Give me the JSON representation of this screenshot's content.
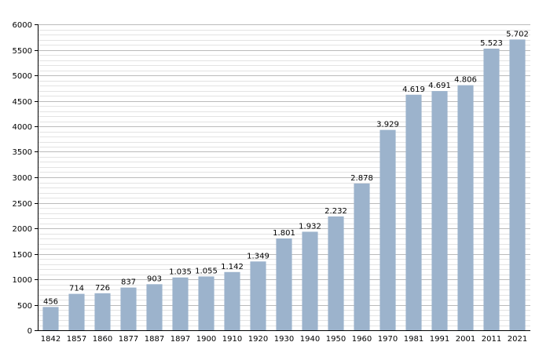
{
  "chart_data": {
    "type": "bar",
    "categories": [
      "1842",
      "1857",
      "1860",
      "1877",
      "1887",
      "1897",
      "1900",
      "1910",
      "1920",
      "1930",
      "1940",
      "1950",
      "1960",
      "1970",
      "1981",
      "1991",
      "2001",
      "2011",
      "2021"
    ],
    "values": [
      456,
      714,
      726,
      837,
      903,
      1035,
      1055,
      1142,
      1349,
      1801,
      1932,
      2232,
      2878,
      3929,
      4619,
      4691,
      4806,
      5523,
      5702
    ],
    "value_labels": [
      "456",
      "714",
      "726",
      "837",
      "903",
      "1.035",
      "1.055",
      "1.142",
      "1.349",
      "1.801",
      "1.932",
      "2.232",
      "2.878",
      "3.929",
      "4.619",
      "4.691",
      "4.806",
      "5.523",
      "5.702"
    ],
    "yticks": [
      0,
      500,
      1000,
      1500,
      2000,
      2500,
      3000,
      3500,
      4000,
      4500,
      5000,
      5500,
      6000
    ],
    "ylim": [
      0,
      6000
    ],
    "minor_step": 100,
    "grid": true,
    "title": "",
    "xlabel": "",
    "ylabel": "",
    "colors": {
      "bar": "#9cb3cc",
      "grid_major": "#bbbbbb",
      "grid_minor": "#e3e3e3",
      "axis": "#000000"
    }
  }
}
